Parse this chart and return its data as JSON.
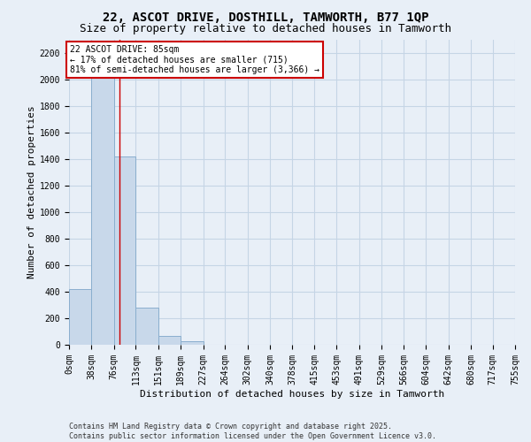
{
  "title_line1": "22, ASCOT DRIVE, DOSTHILL, TAMWORTH, B77 1QP",
  "title_line2": "Size of property relative to detached houses in Tamworth",
  "xlabel": "Distribution of detached houses by size in Tamworth",
  "ylabel": "Number of detached properties",
  "bin_edges": [
    0,
    38,
    76,
    113,
    151,
    189,
    227,
    264,
    302,
    340,
    378,
    415,
    453,
    491,
    529,
    566,
    604,
    642,
    680,
    717,
    755
  ],
  "bar_heights": [
    420,
    2100,
    1420,
    280,
    70,
    30,
    0,
    0,
    0,
    0,
    0,
    0,
    0,
    0,
    0,
    0,
    0,
    0,
    0,
    0
  ],
  "bar_color": "#c8d8ea",
  "bar_edgecolor": "#8aaece",
  "grid_color": "#c5d5e5",
  "background_color": "#e8eff7",
  "property_size": 85,
  "property_line_color": "#cc0000",
  "annotation_text": "22 ASCOT DRIVE: 85sqm\n← 17% of detached houses are smaller (715)\n81% of semi-detached houses are larger (3,366) →",
  "annotation_box_facecolor": "#ffffff",
  "annotation_box_edgecolor": "#cc0000",
  "ylim_max": 2300,
  "ytick_max": 2200,
  "ytick_step": 200,
  "footer_line1": "Contains HM Land Registry data © Crown copyright and database right 2025.",
  "footer_line2": "Contains public sector information licensed under the Open Government Licence v3.0.",
  "title_fontsize": 10,
  "subtitle_fontsize": 9,
  "axis_label_fontsize": 8,
  "tick_fontsize": 7,
  "annotation_fontsize": 7,
  "footer_fontsize": 6
}
